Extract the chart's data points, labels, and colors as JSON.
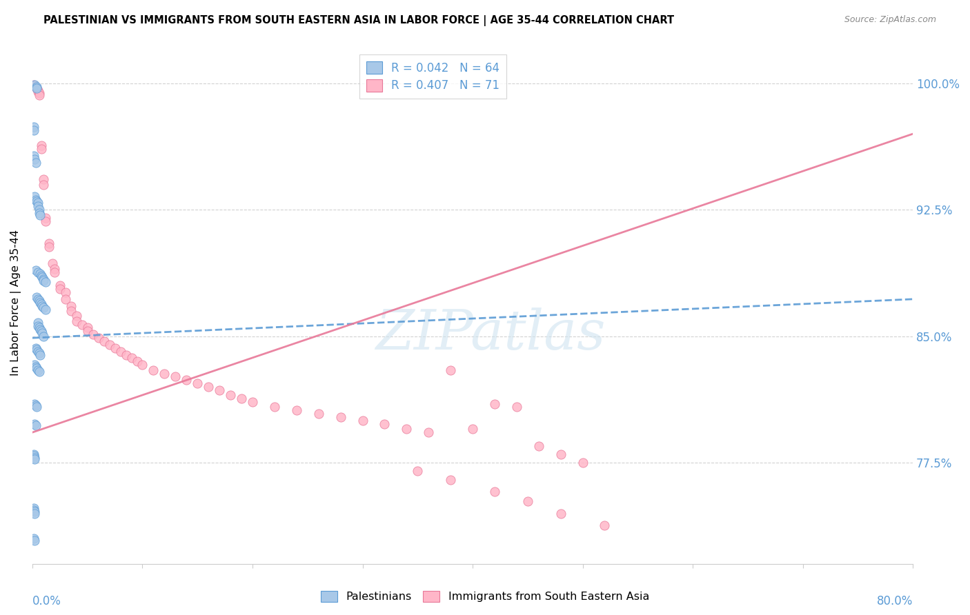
{
  "title": "PALESTINIAN VS IMMIGRANTS FROM SOUTH EASTERN ASIA IN LABOR FORCE | AGE 35-44 CORRELATION CHART",
  "source": "Source: ZipAtlas.com",
  "ylabel": "In Labor Force | Age 35-44",
  "blue_color": "#a8c8e8",
  "blue_edge": "#5b9bd5",
  "pink_color": "#ffb6c8",
  "pink_edge": "#e87898",
  "xmin": 0.0,
  "xmax": 0.8,
  "ymin": 0.715,
  "ymax": 1.025,
  "ytick_values": [
    0.775,
    0.85,
    0.925,
    1.0
  ],
  "ytick_labels": [
    "77.5%",
    "85.0%",
    "92.5%",
    "100.0%"
  ],
  "blue_line_x": [
    0.0,
    0.8
  ],
  "blue_line_y": [
    0.849,
    0.872
  ],
  "pink_line_x": [
    0.0,
    0.8
  ],
  "pink_line_y": [
    0.793,
    0.97
  ],
  "blue_pts_x": [
    0.002,
    0.004,
    0.004,
    0.001,
    0.001,
    0.001,
    0.002,
    0.003,
    0.002,
    0.003,
    0.004,
    0.005,
    0.005,
    0.006,
    0.006,
    0.007,
    0.003,
    0.005,
    0.007,
    0.008,
    0.009,
    0.01,
    0.01,
    0.012,
    0.004,
    0.005,
    0.006,
    0.007,
    0.008,
    0.009,
    0.01,
    0.012,
    0.005,
    0.005,
    0.006,
    0.007,
    0.008,
    0.009,
    0.01,
    0.003,
    0.004,
    0.005,
    0.006,
    0.007,
    0.002,
    0.003,
    0.004,
    0.005,
    0.006,
    0.002,
    0.003,
    0.004,
    0.002,
    0.003,
    0.001,
    0.001,
    0.002,
    0.002,
    0.001,
    0.001,
    0.002,
    0.002,
    0.001,
    0.002
  ],
  "blue_pts_y": [
    0.999,
    0.998,
    0.997,
    0.974,
    0.972,
    0.957,
    0.955,
    0.953,
    0.933,
    0.931,
    0.93,
    0.929,
    0.927,
    0.925,
    0.923,
    0.922,
    0.889,
    0.888,
    0.887,
    0.886,
    0.885,
    0.884,
    0.883,
    0.882,
    0.873,
    0.872,
    0.871,
    0.87,
    0.869,
    0.868,
    0.867,
    0.866,
    0.858,
    0.856,
    0.855,
    0.854,
    0.853,
    0.852,
    0.85,
    0.843,
    0.842,
    0.841,
    0.84,
    0.839,
    0.833,
    0.832,
    0.831,
    0.83,
    0.829,
    0.81,
    0.809,
    0.808,
    0.798,
    0.797,
    0.78,
    0.779,
    0.778,
    0.777,
    0.748,
    0.747,
    0.746,
    0.745,
    0.73,
    0.729
  ],
  "pink_pts_x": [
    0.001,
    0.003,
    0.004,
    0.005,
    0.005,
    0.006,
    0.006,
    0.008,
    0.008,
    0.01,
    0.01,
    0.012,
    0.012,
    0.015,
    0.015,
    0.018,
    0.02,
    0.02,
    0.025,
    0.025,
    0.03,
    0.03,
    0.035,
    0.035,
    0.04,
    0.04,
    0.045,
    0.05,
    0.05,
    0.055,
    0.06,
    0.065,
    0.07,
    0.075,
    0.08,
    0.085,
    0.09,
    0.095,
    0.1,
    0.11,
    0.12,
    0.13,
    0.14,
    0.15,
    0.16,
    0.17,
    0.18,
    0.19,
    0.2,
    0.22,
    0.24,
    0.26,
    0.28,
    0.3,
    0.32,
    0.34,
    0.36,
    0.38,
    0.4,
    0.42,
    0.44,
    0.46,
    0.48,
    0.5,
    0.35,
    0.38,
    0.42,
    0.45,
    0.48,
    0.52
  ],
  "pink_pts_y": [
    0.999,
    0.998,
    0.997,
    0.996,
    0.995,
    0.994,
    0.993,
    0.963,
    0.961,
    0.943,
    0.94,
    0.92,
    0.918,
    0.905,
    0.903,
    0.893,
    0.89,
    0.888,
    0.88,
    0.878,
    0.876,
    0.872,
    0.868,
    0.865,
    0.862,
    0.859,
    0.857,
    0.855,
    0.853,
    0.851,
    0.849,
    0.847,
    0.845,
    0.843,
    0.841,
    0.839,
    0.837,
    0.835,
    0.833,
    0.83,
    0.828,
    0.826,
    0.824,
    0.822,
    0.82,
    0.818,
    0.815,
    0.813,
    0.811,
    0.808,
    0.806,
    0.804,
    0.802,
    0.8,
    0.798,
    0.795,
    0.793,
    0.83,
    0.795,
    0.81,
    0.808,
    0.785,
    0.78,
    0.775,
    0.77,
    0.765,
    0.758,
    0.752,
    0.745,
    0.738
  ]
}
